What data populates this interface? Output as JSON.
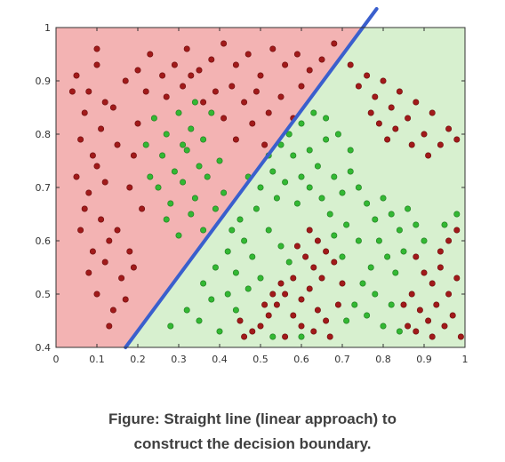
{
  "chart_data": {
    "type": "scatter",
    "title": "",
    "xlabel": "",
    "ylabel": "",
    "xlim": [
      0,
      1
    ],
    "ylim": [
      0.4,
      1
    ],
    "xticks": [
      "0",
      "0.1",
      "0.2",
      "0.3",
      "0.4",
      "0.5",
      "0.6",
      "0.7",
      "0.8",
      "0.9",
      "1"
    ],
    "yticks": [
      "0.4",
      "0.5",
      "0.6",
      "0.7",
      "0.8",
      "0.9",
      "1"
    ],
    "grid": false,
    "legend": "none",
    "regions": [
      {
        "label": "class-red",
        "side": "above-left of boundary",
        "color": "#f3b3b3"
      },
      {
        "label": "class-green",
        "side": "below-right of boundary",
        "color": "#d7f0cf"
      }
    ],
    "decision_boundary": {
      "type": "line",
      "points": [
        [
          0.17,
          0.4
        ],
        [
          0.75,
          1.0
        ]
      ],
      "color": "#3a5fcd"
    },
    "series": [
      {
        "color": "#a11a1a",
        "points": [
          [
            0.05,
            0.91
          ],
          [
            0.08,
            0.88
          ],
          [
            0.1,
            0.93
          ],
          [
            0.07,
            0.84
          ],
          [
            0.12,
            0.86
          ],
          [
            0.06,
            0.79
          ],
          [
            0.09,
            0.76
          ],
          [
            0.11,
            0.81
          ],
          [
            0.14,
            0.85
          ],
          [
            0.05,
            0.72
          ],
          [
            0.08,
            0.69
          ],
          [
            0.1,
            0.74
          ],
          [
            0.07,
            0.66
          ],
          [
            0.12,
            0.71
          ],
          [
            0.06,
            0.62
          ],
          [
            0.09,
            0.58
          ],
          [
            0.11,
            0.64
          ],
          [
            0.13,
            0.6
          ],
          [
            0.08,
            0.54
          ],
          [
            0.1,
            0.5
          ],
          [
            0.12,
            0.56
          ],
          [
            0.14,
            0.47
          ],
          [
            0.16,
            0.53
          ],
          [
            0.18,
            0.58
          ],
          [
            0.13,
            0.44
          ],
          [
            0.15,
            0.62
          ],
          [
            0.17,
            0.49
          ],
          [
            0.19,
            0.55
          ],
          [
            0.15,
            0.78
          ],
          [
            0.17,
            0.9
          ],
          [
            0.2,
            0.92
          ],
          [
            0.23,
            0.95
          ],
          [
            0.26,
            0.91
          ],
          [
            0.29,
            0.93
          ],
          [
            0.32,
            0.96
          ],
          [
            0.35,
            0.92
          ],
          [
            0.38,
            0.94
          ],
          [
            0.41,
            0.97
          ],
          [
            0.44,
            0.93
          ],
          [
            0.47,
            0.95
          ],
          [
            0.5,
            0.91
          ],
          [
            0.53,
            0.96
          ],
          [
            0.56,
            0.93
          ],
          [
            0.59,
            0.95
          ],
          [
            0.62,
            0.92
          ],
          [
            0.65,
            0.94
          ],
          [
            0.68,
            0.97
          ],
          [
            0.43,
            0.89
          ],
          [
            0.46,
            0.86
          ],
          [
            0.49,
            0.88
          ],
          [
            0.52,
            0.84
          ],
          [
            0.55,
            0.87
          ],
          [
            0.58,
            0.83
          ],
          [
            0.6,
            0.89
          ],
          [
            0.48,
            0.82
          ],
          [
            0.44,
            0.79
          ],
          [
            0.51,
            0.78
          ],
          [
            0.41,
            0.83
          ],
          [
            0.39,
            0.88
          ],
          [
            0.36,
            0.86
          ],
          [
            0.22,
            0.88
          ],
          [
            0.27,
            0.87
          ],
          [
            0.31,
            0.89
          ],
          [
            0.2,
            0.82
          ],
          [
            0.18,
            0.7
          ],
          [
            0.19,
            0.76
          ],
          [
            0.21,
            0.66
          ],
          [
            0.1,
            0.96
          ],
          [
            0.04,
            0.88
          ],
          [
            0.33,
            0.91
          ],
          [
            0.72,
            0.93
          ],
          [
            0.74,
            0.89
          ],
          [
            0.76,
            0.91
          ],
          [
            0.78,
            0.87
          ],
          [
            0.8,
            0.9
          ],
          [
            0.82,
            0.85
          ],
          [
            0.84,
            0.88
          ],
          [
            0.86,
            0.83
          ],
          [
            0.79,
            0.82
          ],
          [
            0.81,
            0.79
          ],
          [
            0.77,
            0.84
          ],
          [
            0.83,
            0.81
          ],
          [
            0.88,
            0.86
          ],
          [
            0.9,
            0.8
          ],
          [
            0.92,
            0.84
          ],
          [
            0.94,
            0.78
          ],
          [
            0.96,
            0.81
          ],
          [
            0.98,
            0.79
          ],
          [
            0.87,
            0.78
          ],
          [
            0.91,
            0.76
          ],
          [
            0.62,
            0.62
          ],
          [
            0.64,
            0.6
          ],
          [
            0.66,
            0.58
          ],
          [
            0.61,
            0.57
          ],
          [
            0.63,
            0.55
          ],
          [
            0.65,
            0.53
          ],
          [
            0.68,
            0.56
          ],
          [
            0.59,
            0.59
          ],
          [
            0.58,
            0.53
          ],
          [
            0.56,
            0.5
          ],
          [
            0.54,
            0.48
          ],
          [
            0.52,
            0.46
          ],
          [
            0.5,
            0.44
          ],
          [
            0.48,
            0.43
          ],
          [
            0.46,
            0.42
          ],
          [
            0.55,
            0.52
          ],
          [
            0.53,
            0.5
          ],
          [
            0.51,
            0.48
          ],
          [
            0.6,
            0.49
          ],
          [
            0.62,
            0.51
          ],
          [
            0.58,
            0.46
          ],
          [
            0.6,
            0.44
          ],
          [
            0.64,
            0.47
          ],
          [
            0.66,
            0.45
          ],
          [
            0.56,
            0.42
          ],
          [
            0.7,
            0.52
          ],
          [
            0.69,
            0.48
          ],
          [
            0.67,
            0.42
          ],
          [
            0.63,
            0.43
          ],
          [
            0.45,
            0.45
          ],
          [
            0.88,
            0.57
          ],
          [
            0.9,
            0.54
          ],
          [
            0.92,
            0.52
          ],
          [
            0.94,
            0.55
          ],
          [
            0.96,
            0.5
          ],
          [
            0.98,
            0.53
          ],
          [
            0.87,
            0.5
          ],
          [
            0.89,
            0.47
          ],
          [
            0.91,
            0.45
          ],
          [
            0.93,
            0.48
          ],
          [
            0.95,
            0.44
          ],
          [
            0.97,
            0.46
          ],
          [
            0.99,
            0.42
          ],
          [
            0.86,
            0.44
          ],
          [
            0.92,
            0.42
          ],
          [
            0.94,
            0.58
          ],
          [
            0.96,
            0.6
          ],
          [
            0.98,
            0.62
          ],
          [
            0.85,
            0.48
          ],
          [
            0.88,
            0.43
          ]
        ]
      },
      {
        "color": "#33b833",
        "points": [
          [
            0.24,
            0.83
          ],
          [
            0.27,
            0.8
          ],
          [
            0.3,
            0.84
          ],
          [
            0.33,
            0.81
          ],
          [
            0.26,
            0.76
          ],
          [
            0.29,
            0.73
          ],
          [
            0.32,
            0.77
          ],
          [
            0.35,
            0.74
          ],
          [
            0.25,
            0.7
          ],
          [
            0.28,
            0.67
          ],
          [
            0.31,
            0.71
          ],
          [
            0.34,
            0.68
          ],
          [
            0.37,
            0.72
          ],
          [
            0.27,
            0.64
          ],
          [
            0.3,
            0.61
          ],
          [
            0.33,
            0.65
          ],
          [
            0.36,
            0.62
          ],
          [
            0.39,
            0.66
          ],
          [
            0.31,
            0.78
          ],
          [
            0.36,
            0.79
          ],
          [
            0.22,
            0.78
          ],
          [
            0.23,
            0.72
          ],
          [
            0.38,
            0.84
          ],
          [
            0.34,
            0.86
          ],
          [
            0.41,
            0.69
          ],
          [
            0.4,
            0.75
          ],
          [
            0.28,
            0.44
          ],
          [
            0.32,
            0.47
          ],
          [
            0.35,
            0.45
          ],
          [
            0.38,
            0.49
          ],
          [
            0.4,
            0.43
          ],
          [
            0.42,
            0.5
          ],
          [
            0.36,
            0.52
          ],
          [
            0.39,
            0.55
          ],
          [
            0.42,
            0.58
          ],
          [
            0.44,
            0.54
          ],
          [
            0.46,
            0.6
          ],
          [
            0.48,
            0.57
          ],
          [
            0.45,
            0.64
          ],
          [
            0.49,
            0.66
          ],
          [
            0.52,
            0.62
          ],
          [
            0.54,
            0.68
          ],
          [
            0.5,
            0.7
          ],
          [
            0.53,
            0.73
          ],
          [
            0.56,
            0.71
          ],
          [
            0.58,
            0.76
          ],
          [
            0.6,
            0.72
          ],
          [
            0.62,
            0.77
          ],
          [
            0.64,
            0.74
          ],
          [
            0.66,
            0.79
          ],
          [
            0.57,
            0.8
          ],
          [
            0.6,
            0.82
          ],
          [
            0.63,
            0.84
          ],
          [
            0.55,
            0.78
          ],
          [
            0.52,
            0.76
          ],
          [
            0.47,
            0.72
          ],
          [
            0.59,
            0.67
          ],
          [
            0.62,
            0.7
          ],
          [
            0.65,
            0.68
          ],
          [
            0.68,
            0.72
          ],
          [
            0.7,
            0.69
          ],
          [
            0.72,
            0.73
          ],
          [
            0.74,
            0.7
          ],
          [
            0.76,
            0.67
          ],
          [
            0.78,
            0.64
          ],
          [
            0.8,
            0.68
          ],
          [
            0.82,
            0.65
          ],
          [
            0.84,
            0.62
          ],
          [
            0.86,
            0.66
          ],
          [
            0.88,
            0.63
          ],
          [
            0.9,
            0.6
          ],
          [
            0.79,
            0.6
          ],
          [
            0.81,
            0.57
          ],
          [
            0.83,
            0.54
          ],
          [
            0.85,
            0.58
          ],
          [
            0.77,
            0.55
          ],
          [
            0.75,
            0.52
          ],
          [
            0.73,
            0.48
          ],
          [
            0.71,
            0.45
          ],
          [
            0.76,
            0.46
          ],
          [
            0.78,
            0.5
          ],
          [
            0.8,
            0.44
          ],
          [
            0.82,
            0.48
          ],
          [
            0.84,
            0.43
          ],
          [
            0.74,
            0.6
          ],
          [
            0.71,
            0.63
          ],
          [
            0.68,
            0.61
          ],
          [
            0.7,
            0.57
          ],
          [
            0.72,
            0.77
          ],
          [
            0.69,
            0.8
          ],
          [
            0.66,
            0.83
          ],
          [
            0.98,
            0.65
          ],
          [
            0.95,
            0.63
          ],
          [
            0.44,
            0.47
          ],
          [
            0.47,
            0.51
          ],
          [
            0.6,
            0.42
          ],
          [
            0.57,
            0.56
          ],
          [
            0.55,
            0.59
          ],
          [
            0.5,
            0.53
          ],
          [
            0.53,
            0.42
          ],
          [
            0.43,
            0.62
          ],
          [
            0.67,
            0.65
          ]
        ]
      }
    ]
  },
  "caption": {
    "line1": "Figure: Straight line (linear approach) to",
    "line2": "construct the decision boundary."
  }
}
